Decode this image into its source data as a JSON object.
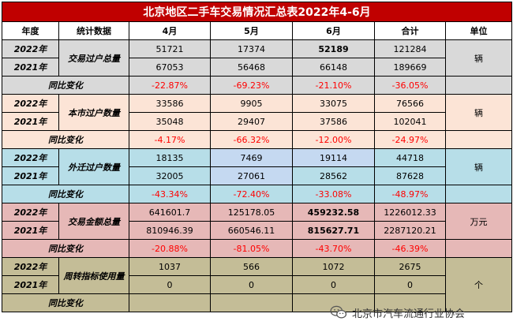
{
  "title": "北京地区二手车交易情况汇总表2022年4-6月",
  "headers": [
    "年度",
    "统计数据",
    "4月",
    "5月",
    "6月",
    "合计",
    "单位"
  ],
  "groups": [
    {
      "metric": "交易过户总量",
      "unit": "辆",
      "y2022": {
        "year": "2022年",
        "apr": "51721",
        "may": "17374",
        "jun": "52189",
        "total": "121284"
      },
      "y2021": {
        "year": "2021年",
        "apr": "67053",
        "may": "56468",
        "jun": "66148",
        "total": "189669"
      },
      "yoy": {
        "label": "同比变化",
        "apr": "-22.87%",
        "may": "-69.23%",
        "jun": "-21.10%",
        "total": "-36.05%"
      }
    },
    {
      "metric": "本市过户数量",
      "unit": "辆",
      "y2022": {
        "year": "2022年",
        "apr": "33586",
        "may": "9905",
        "jun": "33075",
        "total": "76566"
      },
      "y2021": {
        "year": "2021年",
        "apr": "35048",
        "may": "29407",
        "jun": "37586",
        "total": "102041"
      },
      "yoy": {
        "label": "同比变化",
        "apr": "-4.17%",
        "may": "-66.32%",
        "jun": "-12.00%",
        "total": "-24.97%"
      }
    },
    {
      "metric": "外迁过户数量",
      "unit": "辆",
      "y2022": {
        "year": "2022年",
        "apr": "18135",
        "may": "7469",
        "jun": "19114",
        "total": "44718"
      },
      "y2021": {
        "year": "2021年",
        "apr": "32005",
        "may": "27061",
        "jun": "28562",
        "total": "87628"
      },
      "yoy": {
        "label": "同比变化",
        "apr": "-43.34%",
        "may": "-72.40%",
        "jun": "-33.08%",
        "total": "-48.97%"
      }
    },
    {
      "metric": "交易金额总量",
      "unit": "万元",
      "y2022": {
        "year": "2022年",
        "apr": "641601.7",
        "may": "125178.05",
        "jun": "459232.58",
        "total": "1226012.33"
      },
      "y2021": {
        "year": "2021年",
        "apr": "810946.39",
        "may": "660546.11",
        "jun": "815627.71",
        "total": "2287120.21"
      },
      "yoy": {
        "label": "同比变化",
        "apr": "-20.88%",
        "may": "-81.05%",
        "jun": "-43.70%",
        "total": "-46.39%"
      }
    },
    {
      "metric": "周转指标使用量",
      "unit": "个",
      "y2022": {
        "year": "2022年",
        "apr": "1037",
        "may": "566",
        "jun": "1072",
        "total": "2675"
      },
      "y2021": {
        "year": "2021年",
        "apr": "0",
        "may": "0",
        "jun": "0",
        "total": "0"
      },
      "yoy": {
        "label": "同比变化",
        "apr": "",
        "may": "",
        "jun": "",
        "total": ""
      }
    }
  ],
  "watermark": {
    "text": "北京市汽车流通行业协会",
    "icon": "wechat-icon"
  },
  "colors": {
    "title_bg": "#c00000",
    "group1": "#d9d9d9",
    "group2": "#fce4d6",
    "group3": "#b7dee8",
    "group4": "#e6b8b7",
    "group5": "#c4bd97",
    "negative": "#ff0000"
  }
}
